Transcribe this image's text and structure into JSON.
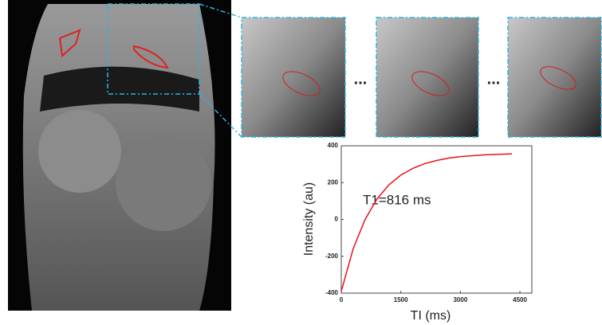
{
  "chart_data": {
    "type": "line",
    "x_label": "TI (ms)",
    "y_label": "Intensity (au)",
    "annotation": "T1=816 ms",
    "separators": [
      "...",
      "..."
    ],
    "x": [
      0,
      300,
      600,
      900,
      1200,
      1500,
      1800,
      2100,
      2400,
      2700,
      3000,
      3600,
      4300
    ],
    "series": [
      {
        "color": "#e8131a",
        "values": [
          -390,
          -159,
          0,
          111,
          188,
          241,
          277,
          303,
          320,
          333,
          341,
          351,
          356
        ]
      }
    ],
    "xlim": [
      0,
      4800
    ],
    "xticks": [
      0,
      1500,
      3000,
      4500
    ],
    "ylim": [
      -400,
      400
    ],
    "yticks": [
      -400,
      -200,
      0,
      200,
      400
    ]
  }
}
